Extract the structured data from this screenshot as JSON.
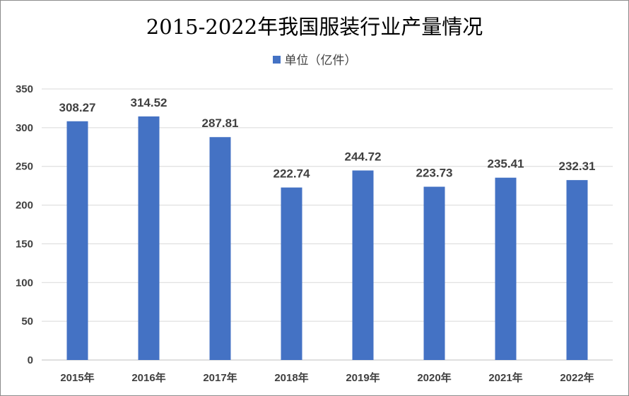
{
  "chart_data": {
    "type": "bar",
    "title": "2015-2022年我国服装行业产量情况",
    "categories": [
      "2015年",
      "2016年",
      "2017年",
      "2018年",
      "2019年",
      "2020年",
      "2021年",
      "2022年"
    ],
    "series": [
      {
        "name": "单位（亿件）",
        "values": [
          308.27,
          314.52,
          287.81,
          222.74,
          244.72,
          223.73,
          235.41,
          232.31
        ],
        "color": "#4472C4"
      }
    ],
    "data_labels": [
      "308.27",
      "314.52",
      "287.81",
      "222.74",
      "244.72",
      "223.73",
      "235.41",
      "232.31"
    ],
    "yticks": [
      "0",
      "50",
      "100",
      "150",
      "200",
      "250",
      "300",
      "350"
    ],
    "ylim": [
      0,
      350
    ],
    "grid": true,
    "legend": "top"
  }
}
